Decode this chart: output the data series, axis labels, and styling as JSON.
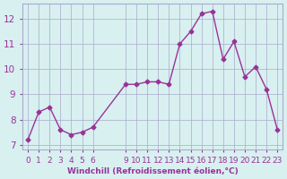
{
  "x": [
    0,
    1,
    2,
    3,
    4,
    5,
    6,
    9,
    10,
    11,
    12,
    13,
    14,
    15,
    16,
    17,
    18,
    19,
    20,
    21,
    22,
    23
  ],
  "y": [
    7.2,
    8.3,
    8.5,
    7.6,
    7.4,
    7.5,
    7.7,
    9.4,
    9.4,
    9.5,
    9.5,
    9.4,
    11.0,
    11.5,
    12.2,
    12.3,
    10.4,
    11.1,
    9.7,
    10.1,
    9.2,
    7.6
  ],
  "x_all": [
    0,
    1,
    2,
    3,
    4,
    5,
    6,
    9,
    10,
    11,
    12,
    13,
    14,
    15,
    16,
    17,
    18,
    19,
    20,
    21,
    22,
    23
  ],
  "line_color": "#993399",
  "marker_color": "#993399",
  "bg_color": "#d8f0f0",
  "grid_color": "#aaaacc",
  "xlabel": "Windchill (Refroidissement éolien,°C)",
  "xlabel_color": "#993399",
  "tick_color": "#993399",
  "ylim": [
    6.8,
    12.6
  ],
  "yticks": [
    7,
    8,
    9,
    10,
    11,
    12
  ],
  "xtick_labels": [
    "0",
    "1",
    "2",
    "3",
    "4",
    "5",
    "6",
    "9",
    "10",
    "11",
    "12",
    "13",
    "14",
    "15",
    "16",
    "17",
    "18",
    "19",
    "20",
    "21",
    "22",
    "23"
  ]
}
